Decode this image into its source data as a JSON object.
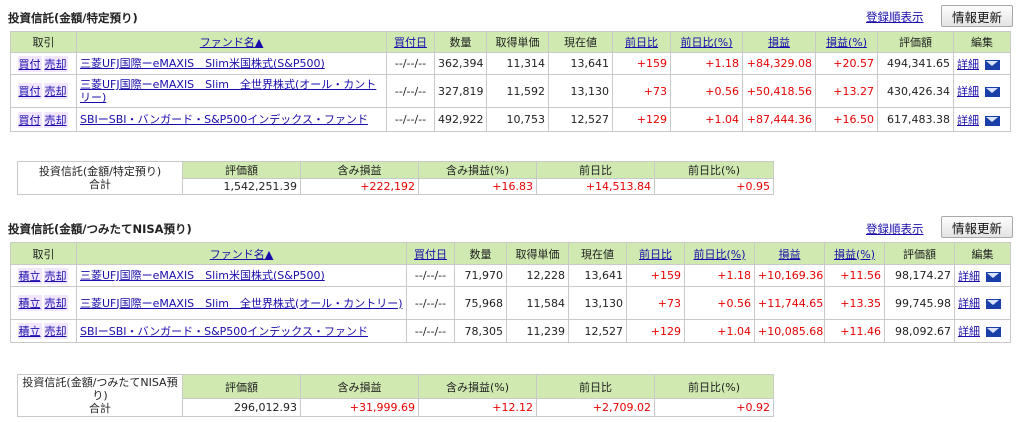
{
  "section1": {
    "title": "投資信託(金額/特定預り)",
    "reg_link": "登録順表示",
    "update_btn": "情報更新",
    "headers": {
      "torihiki": "取引",
      "fund": "ファンド名▲",
      "date": "買付日",
      "qty": "数量",
      "cost": "取得単価",
      "price": "現在値",
      "dod": "前日比",
      "dodpct": "前日比(%)",
      "pl": "損益",
      "plpct": "損益(%)",
      "value": "評価額",
      "edit": "編集"
    },
    "rows": [
      {
        "btn1": "買付",
        "btn2": "売却",
        "fund": "三菱UFJ国際ーeMAXIS　Slim米国株式(S&P500)",
        "date": "--/--/--",
        "qty": "362,394",
        "cost": "11,314",
        "price": "13,641",
        "dod": "+159",
        "dodpct": "+1.18",
        "pl": "+84,329.08",
        "plpct": "+20.57",
        "value": "494,341.65",
        "detail": "詳細"
      },
      {
        "btn1": "買付",
        "btn2": "売却",
        "fund": "三菱UFJ国際ーeMAXIS　Slim　全世界株式(オール・カントリー)",
        "date": "--/--/--",
        "qty": "327,819",
        "cost": "11,592",
        "price": "13,130",
        "dod": "+73",
        "dodpct": "+0.56",
        "pl": "+50,418.56",
        "plpct": "+13.27",
        "value": "430,426.34",
        "detail": "詳細"
      },
      {
        "btn1": "買付",
        "btn2": "売却",
        "fund": "SBIーSBI・バンガード・S&P500インデックス・ファンド",
        "date": "--/--/--",
        "qty": "492,922",
        "cost": "10,753",
        "price": "12,527",
        "dod": "+129",
        "dodpct": "+1.04",
        "pl": "+87,444.36",
        "plpct": "+16.50",
        "value": "617,483.38",
        "detail": "詳細"
      }
    ],
    "summary": {
      "label1": "投資信託(金額/特定預り)",
      "label2": "合計",
      "h_value": "評価額",
      "h_pl": "含み損益",
      "h_plpct": "含み損益(%)",
      "h_dod": "前日比",
      "h_dodpct": "前日比(%)",
      "value": "1,542,251.39",
      "pl": "+222,192",
      "plpct": "+16.83",
      "dod": "+14,513.84",
      "dodpct": "+0.95"
    }
  },
  "section2": {
    "title": "投資信託(金額/つみたてNISA預り)",
    "reg_link": "登録順表示",
    "update_btn": "情報更新",
    "headers": {
      "torihiki": "取引",
      "fund": "ファンド名▲",
      "date": "買付日",
      "qty": "数量",
      "cost": "取得単価",
      "price": "現在値",
      "dod": "前日比",
      "dodpct": "前日比(%)",
      "pl": "損益",
      "plpct": "損益(%)",
      "value": "評価額",
      "edit": "編集"
    },
    "rows": [
      {
        "btn1": "積立",
        "btn2": "売却",
        "fund": "三菱UFJ国際ーeMAXIS　Slim米国株式(S&P500)",
        "date": "--/--/--",
        "qty": "71,970",
        "cost": "12,228",
        "price": "13,641",
        "dod": "+159",
        "dodpct": "+1.18",
        "pl": "+10,169.36",
        "plpct": "+11.56",
        "value": "98,174.27",
        "detail": "詳細"
      },
      {
        "btn1": "積立",
        "btn2": "売却",
        "fund": "三菱UFJ国際ーeMAXIS　Slim　全世界株式(オール・カントリー)",
        "date": "--/--/--",
        "qty": "75,968",
        "cost": "11,584",
        "price": "13,130",
        "dod": "+73",
        "dodpct": "+0.56",
        "pl": "+11,744.65",
        "plpct": "+13.35",
        "value": "99,745.98",
        "detail": "詳細"
      },
      {
        "btn1": "積立",
        "btn2": "売却",
        "fund": "SBIーSBI・バンガード・S&P500インデックス・ファンド",
        "date": "--/--/--",
        "qty": "78,305",
        "cost": "11,239",
        "price": "12,527",
        "dod": "+129",
        "dodpct": "+1.04",
        "pl": "+10,085.68",
        "plpct": "+11.46",
        "value": "98,092.67",
        "detail": "詳細"
      }
    ],
    "summary": {
      "label1": "投資信託(金額/つみたてNISA預り)",
      "label2": "合計",
      "h_value": "評価額",
      "h_pl": "含み損益",
      "h_plpct": "含み損益(%)",
      "h_dod": "前日比",
      "h_dodpct": "前日比(%)",
      "value": "296,012.93",
      "pl": "+31,999.69",
      "plpct": "+12.12",
      "dod": "+2,709.02",
      "dodpct": "+0.92"
    }
  }
}
